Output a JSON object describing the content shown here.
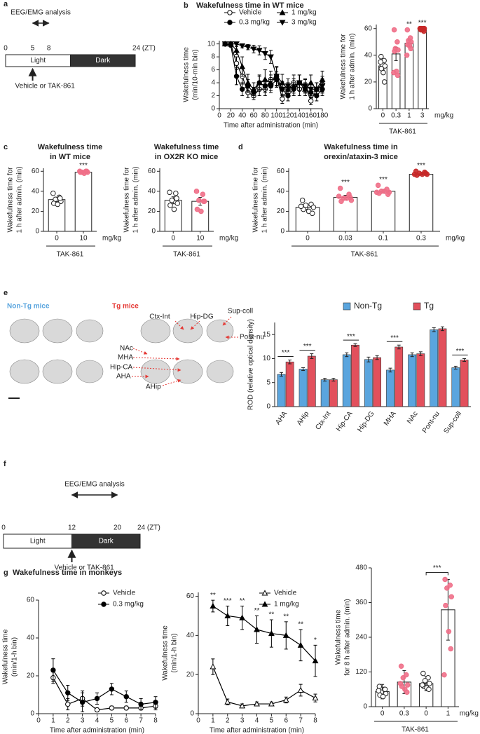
{
  "panel_labels": [
    "a",
    "b",
    "c",
    "d",
    "e",
    "f",
    "g"
  ],
  "timeline_a": {
    "lim": [
      0,
      24
    ],
    "ticks": [
      0,
      5,
      8,
      {
        "value": 24,
        "label": "24 (ZT)"
      }
    ],
    "window": [
      5,
      8
    ],
    "window_label": "EEG/EMG analysis",
    "dark_start": 12,
    "light": "Light",
    "dark": "Dark",
    "dose_time": 5,
    "dose_label": "Vehicle or TAK-861"
  },
  "timeline_f": {
    "lim": [
      0,
      24
    ],
    "ticks": [
      0,
      12,
      20,
      {
        "value": 24,
        "label": "24 (ZT)"
      }
    ],
    "window": [
      12,
      20
    ],
    "window_label": "EEG/EMG analysis",
    "dark_start": 12,
    "light": "Light",
    "dark": "Dark",
    "dose_time": 12,
    "dose_label": "Vehicle or TAK-861"
  },
  "panel_e": {
    "left_title": "Non-Tg mice",
    "right_title": "Tg mice",
    "region_labels": [
      "Ctx-Int",
      "Hip-DG",
      "Sup-coll",
      "NAc",
      "MHA",
      "Pont-nu",
      "Hip-CA",
      "AHA",
      "AHip"
    ]
  },
  "chart_data": [
    {
      "type": "line",
      "title": [
        "Wakefulness time in WT mice"
      ],
      "ylabel": [
        "Wakefulness time",
        "(min/10-min bin)"
      ],
      "xlabel": "Time after administration (min)",
      "x": [
        10,
        20,
        30,
        40,
        50,
        60,
        70,
        80,
        90,
        100,
        110,
        120,
        130,
        140,
        150,
        160,
        170,
        180
      ],
      "xlim": [
        0,
        180
      ],
      "xticks": [
        0,
        20,
        40,
        60,
        80,
        100,
        120,
        140,
        160,
        180
      ],
      "ylim": [
        0,
        10.5
      ],
      "yticks": [
        0,
        2,
        4,
        6,
        8,
        10
      ],
      "series": [
        {
          "name": "Vehicle",
          "color": "#000000",
          "marker": "open-circle",
          "values": [
            10,
            10,
            7,
            5,
            2.5,
            2,
            3,
            3,
            4.5,
            5,
            1.5,
            3,
            4,
            3,
            3.5,
            1.2,
            3,
            3.8
          ],
          "errors": [
            0,
            0,
            1,
            1.2,
            0.8,
            0.6,
            1,
            1,
            1.3,
            1.5,
            0.7,
            1,
            1.2,
            1,
            1.1,
            0.6,
            1,
            1.2
          ]
        },
        {
          "name": "0.3 mg/kg",
          "color": "#000000",
          "marker": "circle",
          "values": [
            10,
            9.8,
            5,
            3,
            3.5,
            2.5,
            4,
            3.5,
            3.5,
            4.5,
            3,
            2,
            3,
            4,
            3,
            2.5,
            2,
            3
          ],
          "errors": [
            0,
            0.2,
            1.3,
            1,
            1,
            0.8,
            1,
            1,
            1,
            1.2,
            1,
            0.8,
            1,
            1.2,
            1,
            0.8,
            0.8,
            1
          ]
        },
        {
          "name": "1 mg/kg",
          "color": "#000000",
          "marker": "triangle",
          "values": [
            10,
            10,
            9,
            6.5,
            4,
            3,
            4,
            4.5,
            4,
            5,
            4,
            3,
            3.5,
            4,
            3,
            4,
            3,
            4.5
          ],
          "errors": [
            0,
            0,
            0.6,
            1.5,
            1.3,
            1,
            1.2,
            1.5,
            1.2,
            1.4,
            1.3,
            1,
            1.1,
            1.2,
            1,
            1.2,
            1,
            1.3
          ]
        },
        {
          "name": "3 mg/kg",
          "color": "#000000",
          "marker": "down-triangle",
          "values": [
            10,
            10,
            10,
            9.7,
            9.5,
            9.2,
            9,
            8.5,
            8,
            5,
            3,
            3.5,
            3,
            4,
            3.5,
            3,
            3,
            3.5
          ],
          "errors": [
            0,
            0,
            0,
            0.3,
            0.4,
            0.6,
            0.7,
            0.9,
            1,
            1.5,
            1.2,
            1.1,
            1,
            1.2,
            1,
            1,
            1,
            1.1
          ]
        }
      ]
    },
    {
      "type": "bar",
      "ylabel": [
        "Wakefulness time for",
        "1 h after admin. (min)"
      ],
      "categories": [
        "0",
        "0.3",
        "1",
        "3"
      ],
      "values": [
        32,
        41,
        49,
        59
      ],
      "errors": [
        3,
        5,
        2.5,
        0.3
      ],
      "color": "#ffffff",
      "points": [
        [
          39,
          36,
          33,
          32,
          30,
          27,
          20,
          35
        ],
        [
          59,
          50,
          45,
          44,
          43,
          28,
          25,
          27
        ],
        [
          59,
          53,
          51,
          50,
          48,
          47,
          45,
          40
        ],
        [
          60,
          60,
          60,
          60,
          59,
          59,
          58,
          60
        ]
      ],
      "point_colors": [
        "#ffffff",
        "#ef6f88",
        "#ef6f88",
        "#c62828"
      ],
      "annotations": [
        null,
        null,
        "**",
        "***"
      ],
      "ylim": [
        0,
        63
      ],
      "yticks": [
        0,
        20,
        40,
        60
      ],
      "unit_label": "mg/kg",
      "group_label": "TAK-861"
    },
    {
      "type": "bar",
      "title": [
        "Wakefulness time",
        "in WT mice"
      ],
      "ylabel": [
        "Wakefulness time for",
        "1 h after admin. (min)"
      ],
      "categories": [
        "0",
        "10"
      ],
      "values": [
        31.7,
        59
      ],
      "errors": [
        2,
        0.3
      ],
      "color": "#ffffff",
      "points": [
        [
          38,
          34,
          32,
          30,
          28,
          27,
          33
        ],
        [
          60,
          60,
          59,
          59,
          59,
          58,
          60
        ]
      ],
      "point_colors": [
        "#ffffff",
        "#ef6f88"
      ],
      "annotations": [
        null,
        "***"
      ],
      "ylim": [
        0,
        63
      ],
      "yticks": [
        0,
        20,
        40,
        60
      ],
      "unit_label": "mg/kg",
      "group_label": "TAK-861"
    },
    {
      "type": "bar",
      "title": [
        "Wakefulness time",
        "in OX2R KO mice"
      ],
      "ylabel": [
        "Wakefulness time for",
        "1 h after admin. (min)"
      ],
      "categories": [
        "0",
        "10"
      ],
      "values": [
        31,
        30
      ],
      "errors": [
        3.5,
        4
      ],
      "color": "#ffffff",
      "points": [
        [
          39,
          38,
          31,
          28,
          26,
          22,
          33
        ],
        [
          40,
          37,
          31,
          30,
          22,
          20,
          30
        ]
      ],
      "point_colors": [
        "#ffffff",
        "#ef6f88"
      ],
      "ylim": [
        0,
        63
      ],
      "yticks": [
        0,
        20,
        40,
        60
      ],
      "unit_label": "mg/kg",
      "group_label": "TAK-861"
    },
    {
      "type": "bar",
      "title": [
        "Wakefulness time in",
        "orexin/ataxin-3 mice"
      ],
      "ylabel": [
        "Wakefulness time for",
        "1 h after admin. (min)"
      ],
      "categories": [
        "0",
        "0.03",
        "0.1",
        "0.3"
      ],
      "values": [
        24,
        34,
        40,
        57
      ],
      "errors": [
        2,
        2,
        1.5,
        0.7
      ],
      "color": "#ffffff",
      "points": [
        [
          31,
          27,
          26,
          24,
          22,
          20,
          18,
          25
        ],
        [
          43,
          37,
          33,
          31,
          30,
          33,
          34,
          35
        ],
        [
          46,
          42,
          40,
          39,
          38,
          40,
          37,
          39
        ],
        [
          60,
          59,
          58,
          57,
          56,
          57,
          58,
          57
        ]
      ],
      "point_colors": [
        "#ffffff",
        "#ef6f88",
        "#ef6f88",
        "#c62828"
      ],
      "annotations": [
        null,
        "***",
        "***",
        "***"
      ],
      "ylim": [
        0,
        63
      ],
      "yticks": [
        0,
        20,
        40,
        60
      ],
      "unit_label": "mg/kg",
      "group_label": "TAK-861"
    },
    {
      "type": "bar",
      "ylabel": [
        "ROD (relative optical density)"
      ],
      "categories": [
        "AHA",
        "AHip",
        "Ctx-Int",
        "Hip-CA",
        "Hip-DG",
        "MHA",
        "NAc",
        "Pont-nu",
        "Sup-coll"
      ],
      "series": [
        {
          "name": "Non-Tg",
          "color": "#5aa5de",
          "values": [
            6.7,
            7.8,
            5.6,
            10.8,
            9.8,
            7.6,
            10.8,
            16,
            8.1
          ],
          "errors": [
            0.4,
            0.3,
            0.3,
            0.4,
            0.5,
            0.4,
            0.4,
            0.4,
            0.3
          ]
        },
        {
          "name": "Tg",
          "color": "#e2505c",
          "values": [
            9.3,
            10.5,
            5.6,
            12.8,
            10.2,
            12.4,
            11,
            16.2,
            9.7
          ],
          "errors": [
            0.4,
            0.5,
            0.3,
            0.3,
            0.4,
            0.4,
            0.4,
            0.4,
            0.3
          ]
        }
      ],
      "annotations": [
        "***",
        "***",
        null,
        "***",
        null,
        "***",
        null,
        null,
        "***"
      ],
      "ylim": [
        0,
        17.5
      ],
      "yticks": [
        0,
        5,
        10,
        15
      ]
    },
    {
      "type": "line",
      "title": [
        "Wakefulness time in monkeys"
      ],
      "ylabel": [
        "Wakefulness time",
        "(min/1-h bin)"
      ],
      "xlabel": "Time after administration (min)",
      "x": [
        1,
        2,
        3,
        4,
        5,
        6,
        7,
        8
      ],
      "xlim": [
        0,
        8
      ],
      "xticks": [
        0,
        1,
        2,
        3,
        4,
        5,
        6,
        7,
        8
      ],
      "ylim": [
        0,
        60
      ],
      "yticks": [
        0,
        20,
        40,
        60
      ],
      "series": [
        {
          "name": "Vehicle",
          "color": "#000000",
          "marker": "open-circle",
          "values": [
            19,
            5,
            8,
            2,
            3,
            3,
            3,
            4
          ],
          "errors": [
            3,
            3,
            4,
            1,
            1,
            1,
            1,
            2
          ]
        },
        {
          "name": "0.3 mg/kg",
          "color": "#000000",
          "marker": "circle",
          "values": [
            23,
            11,
            6,
            8,
            13,
            9,
            5,
            6
          ],
          "errors": [
            6,
            4,
            5,
            3,
            3,
            3,
            3,
            3
          ]
        }
      ]
    },
    {
      "type": "line",
      "ylabel": [
        "Wakefulness time",
        "(min/1-h bin)"
      ],
      "xlabel": "Time after administration (min)",
      "x": [
        1,
        2,
        3,
        4,
        5,
        6,
        7,
        8
      ],
      "xlim": [
        0,
        8
      ],
      "xticks": [
        0,
        1,
        2,
        3,
        4,
        5,
        6,
        7,
        8
      ],
      "ylim": [
        0,
        62
      ],
      "yticks": [
        0,
        20,
        40,
        60
      ],
      "series": [
        {
          "name": "Vehicle",
          "color": "#000000",
          "marker": "open-triangle",
          "values": [
            24,
            6,
            4,
            5,
            5,
            7,
            12,
            8
          ],
          "errors": [
            4,
            1.5,
            1,
            1,
            1,
            1.5,
            3,
            2
          ]
        },
        {
          "name": "1 mg/kg",
          "color": "#000000",
          "marker": "triangle",
          "values": [
            55,
            50,
            49,
            43,
            41,
            40,
            35,
            27
          ],
          "errors": [
            3,
            5,
            6,
            7,
            7,
            7,
            8,
            8
          ],
          "annotations": [
            "**",
            "***",
            "**",
            "**",
            "**",
            "**",
            "**",
            "*"
          ]
        }
      ]
    },
    {
      "type": "bar",
      "ylabel": [
        "Wakefulness time",
        "for 8 h after admin. (min)"
      ],
      "categories": [
        "0",
        "0.3",
        "0",
        "1"
      ],
      "values": [
        52,
        85,
        80,
        335
      ],
      "errors": [
        25,
        40,
        25,
        105
      ],
      "color": "#ffffff",
      "points": [
        [
          70,
          60,
          50,
          45,
          40,
          35,
          60,
          55
        ],
        [
          140,
          110,
          100,
          75,
          70,
          60,
          50,
          80
        ],
        [
          115,
          100,
          90,
          80,
          70,
          65,
          60,
          75
        ],
        [
          440,
          420,
          410,
          380,
          350,
          260,
          200,
          110
        ]
      ],
      "point_colors": [
        "#ffffff",
        "#ef6f88",
        "#ffffff",
        "#ef6f88"
      ],
      "comparison": {
        "pair": [
          2,
          3
        ],
        "label": "***"
      },
      "ylim": [
        0,
        480
      ],
      "yticks": [
        0,
        120,
        240,
        360,
        480
      ],
      "unit_label": "mg/kg",
      "group_label": "TAK-861"
    }
  ]
}
